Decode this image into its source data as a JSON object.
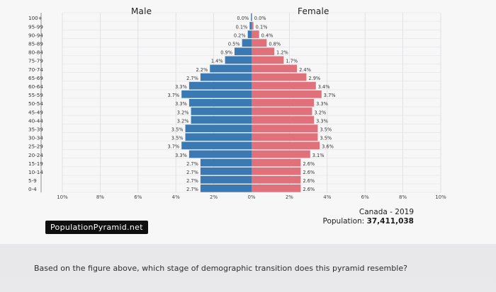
{
  "header": {
    "male": "Male",
    "female": "Female"
  },
  "brand": "PopulationPyramid.net",
  "caption": {
    "line1": "Canada - 2019",
    "line2_label": "Population:",
    "line2_value": "37,411,038"
  },
  "question": "Based on the figure above, which stage of demographic transition does this pyramid resemble?",
  "colors": {
    "male": "#3a79b1",
    "female": "#e0707a"
  },
  "chart_data": {
    "type": "bar",
    "orientation": "horizontal-population-pyramid",
    "categories": [
      "100+",
      "95-99",
      "90-94",
      "85-89",
      "80-84",
      "75-79",
      "70-74",
      "65-69",
      "60-64",
      "55-59",
      "50-54",
      "45-49",
      "40-44",
      "35-39",
      "30-34",
      "25-29",
      "20-24",
      "15-19",
      "10-14",
      "5-9",
      "0-4"
    ],
    "series": [
      {
        "name": "Male",
        "values": [
          0.0,
          0.1,
          0.2,
          0.5,
          0.9,
          1.4,
          2.2,
          2.7,
          3.3,
          3.7,
          3.3,
          3.2,
          3.2,
          3.5,
          3.5,
          3.7,
          3.3,
          2.7,
          2.7,
          2.7,
          2.7
        ]
      },
      {
        "name": "Female",
        "values": [
          0.0,
          0.1,
          0.4,
          0.8,
          1.2,
          1.7,
          2.4,
          2.9,
          3.4,
          3.7,
          3.3,
          3.2,
          3.3,
          3.5,
          3.5,
          3.6,
          3.1,
          2.6,
          2.6,
          2.6,
          2.6
        ]
      }
    ],
    "bar_labels": {
      "male": [
        "0.0%",
        "0.1%",
        "0.2%",
        "0.5%",
        "0.9%",
        "1.4%",
        "2.2%",
        "2.7%",
        "3.3%",
        "3.7%",
        "3.3%",
        "3.2%",
        "3.2%",
        "3.5%",
        "3.5%",
        "3.7%",
        "3.3%",
        "2.7%",
        "2.7%",
        "2.7%",
        "2.7%"
      ],
      "female": [
        "0.0%",
        "0.1%",
        "0.4%",
        "0.8%",
        "1.2%",
        "1.7%",
        "2.4%",
        "2.9%",
        "3.4%",
        "3.7%",
        "3.3%",
        "3.2%",
        "3.3%",
        "3.5%",
        "3.5%",
        "3.6%",
        "3.1%",
        "2.6%",
        "2.6%",
        "2.6%",
        "2.6%"
      ]
    },
    "xticks": [
      "10%",
      "8%",
      "6%",
      "4%",
      "2%",
      "0%",
      "2%",
      "4%",
      "6%",
      "8%",
      "10%"
    ],
    "xlim": [
      -10,
      10
    ],
    "grid": true,
    "legend": "none"
  }
}
